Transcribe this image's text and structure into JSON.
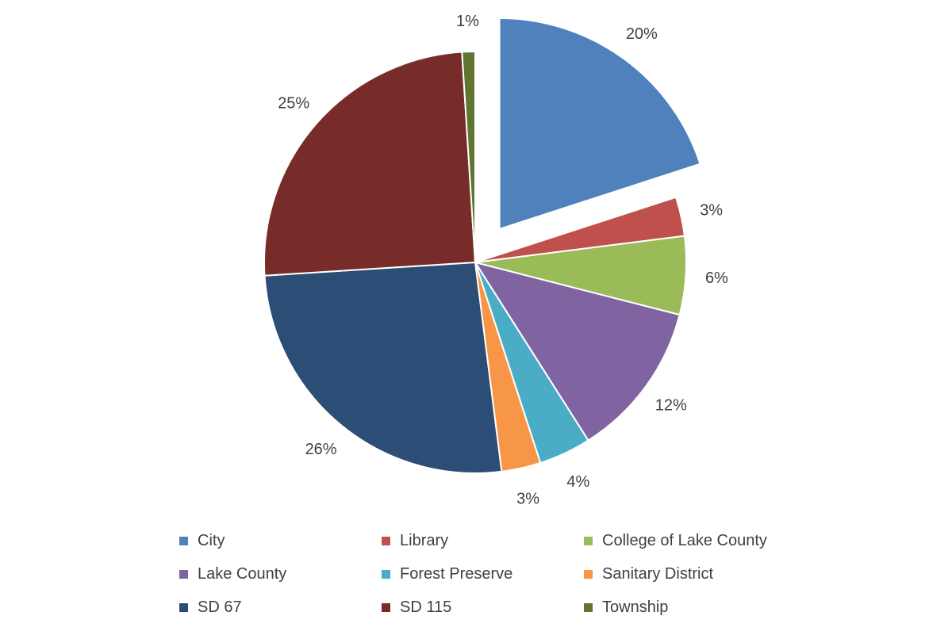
{
  "chart_data": {
    "type": "pie",
    "title": "",
    "slices": [
      {
        "name": "City",
        "value": 20,
        "label": "20%",
        "color": "#4F81BD",
        "exploded": true
      },
      {
        "name": "Library",
        "value": 3,
        "label": "3%",
        "color": "#C0504D"
      },
      {
        "name": "College of Lake County",
        "value": 6,
        "label": "6%",
        "color": "#9BBB59"
      },
      {
        "name": "Lake County",
        "value": 12,
        "label": "12%",
        "color": "#8064A2"
      },
      {
        "name": "Forest Preserve",
        "value": 4,
        "label": "4%",
        "color": "#4BACC6"
      },
      {
        "name": "Sanitary District",
        "value": 3,
        "label": "3%",
        "color": "#F79646"
      },
      {
        "name": "SD 67",
        "value": 26,
        "label": "26%",
        "color": "#2C4D75"
      },
      {
        "name": "SD 115",
        "value": 25,
        "label": "25%",
        "color": "#772C2A"
      },
      {
        "name": "Township",
        "value": 1,
        "label": "1%",
        "color": "#5F7530"
      }
    ],
    "legend_position": "bottom"
  }
}
